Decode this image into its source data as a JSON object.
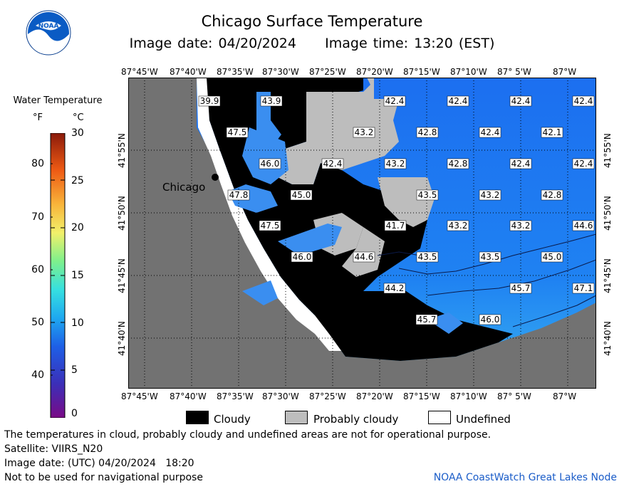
{
  "header": {
    "title": "Chicago Surface Temperature",
    "subtitle": "Image date: 04/20/2024     Image time: 13:20 (EST)",
    "logo_text": "NOAA"
  },
  "legend": {
    "title": "Water Temperature",
    "unit_f": "°F",
    "unit_c": "°C",
    "f_ticks": [
      "80",
      "70",
      "60",
      "50",
      "40"
    ],
    "c_ticks": [
      "30",
      "25",
      "20",
      "15",
      "10",
      "5",
      "0"
    ]
  },
  "map": {
    "city_label": "Chicago",
    "lon_labels": [
      "87°45'W",
      "87°40'W",
      "87°35'W",
      "87°30'W",
      "87°25'W",
      "87°20'W",
      "87°15'W",
      "87°10'W",
      "87° 5'W",
      "87°W"
    ],
    "lat_labels": [
      "41°55'N",
      "41°50'N",
      "41°45'N",
      "41°40'N"
    ],
    "temperatures": [
      "39.9",
      "43.9",
      "42.4",
      "42.4",
      "42.4",
      "42.4",
      "47.5",
      "43.2",
      "42.8",
      "42.4",
      "42.1",
      "46.0",
      "42.4",
      "43.2",
      "42.8",
      "42.4",
      "42.4",
      "47.8",
      "45.0",
      "43.5",
      "43.2",
      "42.8",
      "47.5",
      "41.7",
      "43.2",
      "43.2",
      "44.6",
      "46.0",
      "44.6",
      "43.5",
      "43.5",
      "45.0",
      "44.2",
      "45.7",
      "47.1",
      "45.7",
      "46.0"
    ],
    "colors": {
      "water": "#1e7cf2",
      "water_warm": "#36a8f0",
      "cloud": "#000000",
      "probably_cloudy": "#bdbdbd",
      "land": "#707070",
      "undefined": "#ffffff"
    }
  },
  "key": {
    "cloudy": "Cloudy",
    "probably_cloudy": "Probably cloudy",
    "undefined": "Undefined"
  },
  "footer": {
    "disclaimer": "The temperatures in cloud, probably cloudy and undefined areas are not for operational purpose.",
    "satellite": "Satellite: VIIRS_N20",
    "utc_date": "Image date: (UTC) 04/20/2024   18:20",
    "navigation": "Not to be used for navigational purpose",
    "node": "NOAA CoastWatch Great Lakes Node"
  }
}
